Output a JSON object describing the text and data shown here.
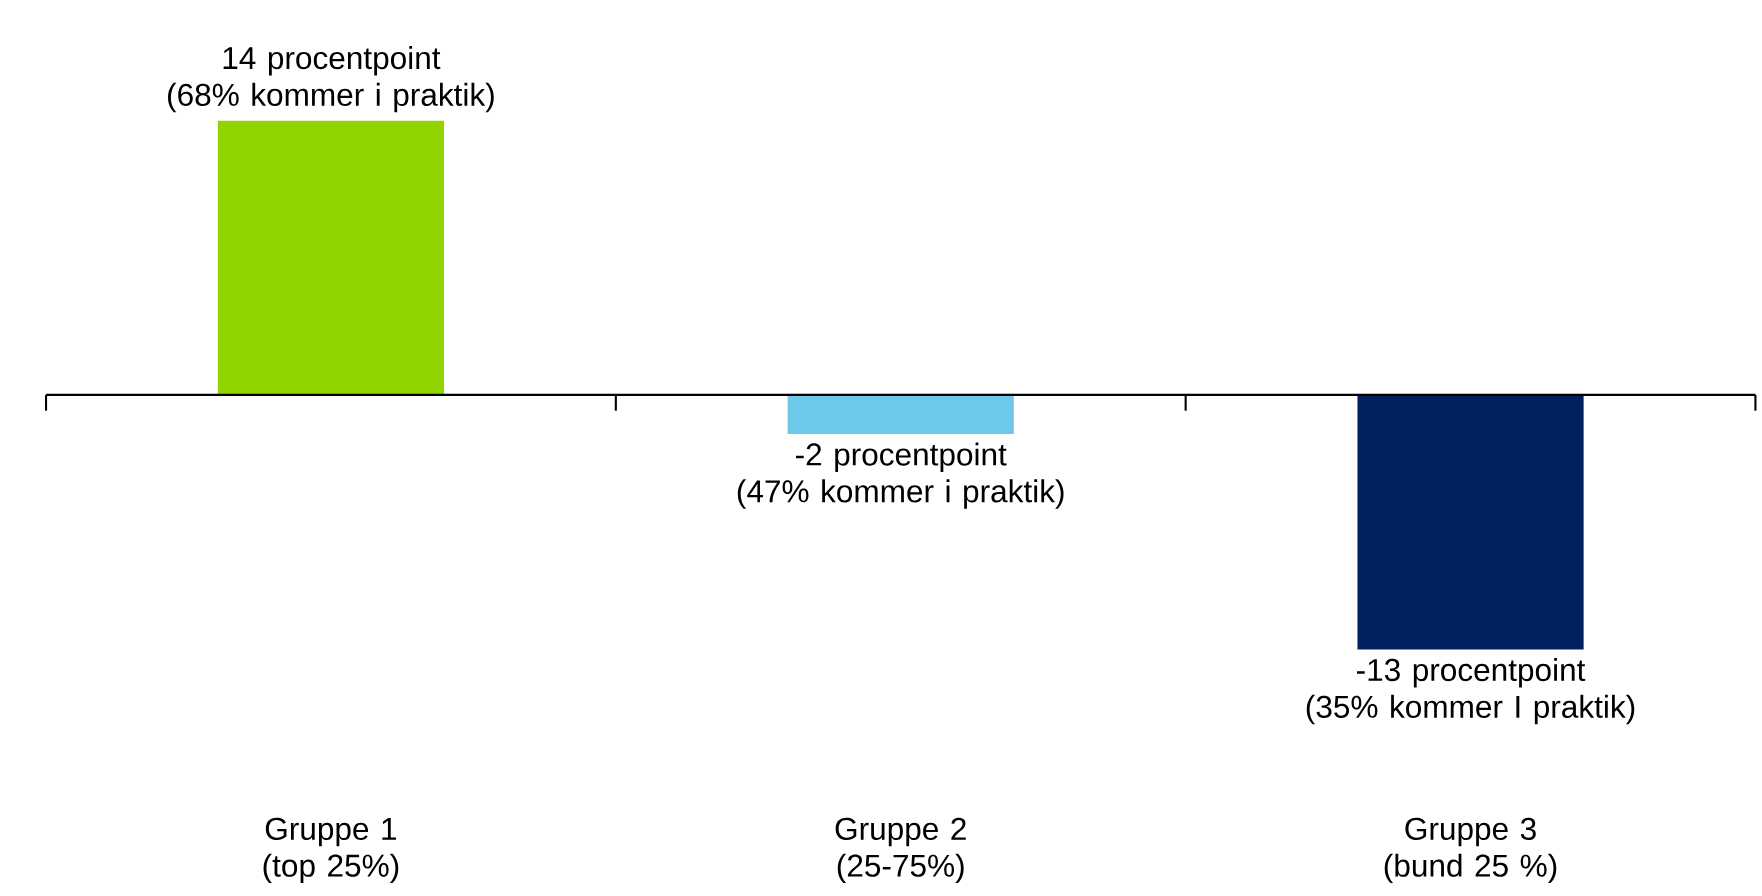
{
  "chart_data": {
    "type": "bar",
    "categories": [
      "Gruppe 1\n(top 25%)",
      "Gruppe 2\n(25-75%)",
      "Gruppe 3\n(bund 25 %)"
    ],
    "values": [
      14,
      -2,
      -13
    ],
    "colors": [
      "#92d400",
      "#6dc8e9",
      "#002060"
    ],
    "value_labels": [
      "14 procentpoint\n(68% kommer i praktik)",
      "-2 procentpoint\n(47% kommer i praktik)",
      "-13 procentpoint\n(35% kommer I praktik)"
    ]
  }
}
